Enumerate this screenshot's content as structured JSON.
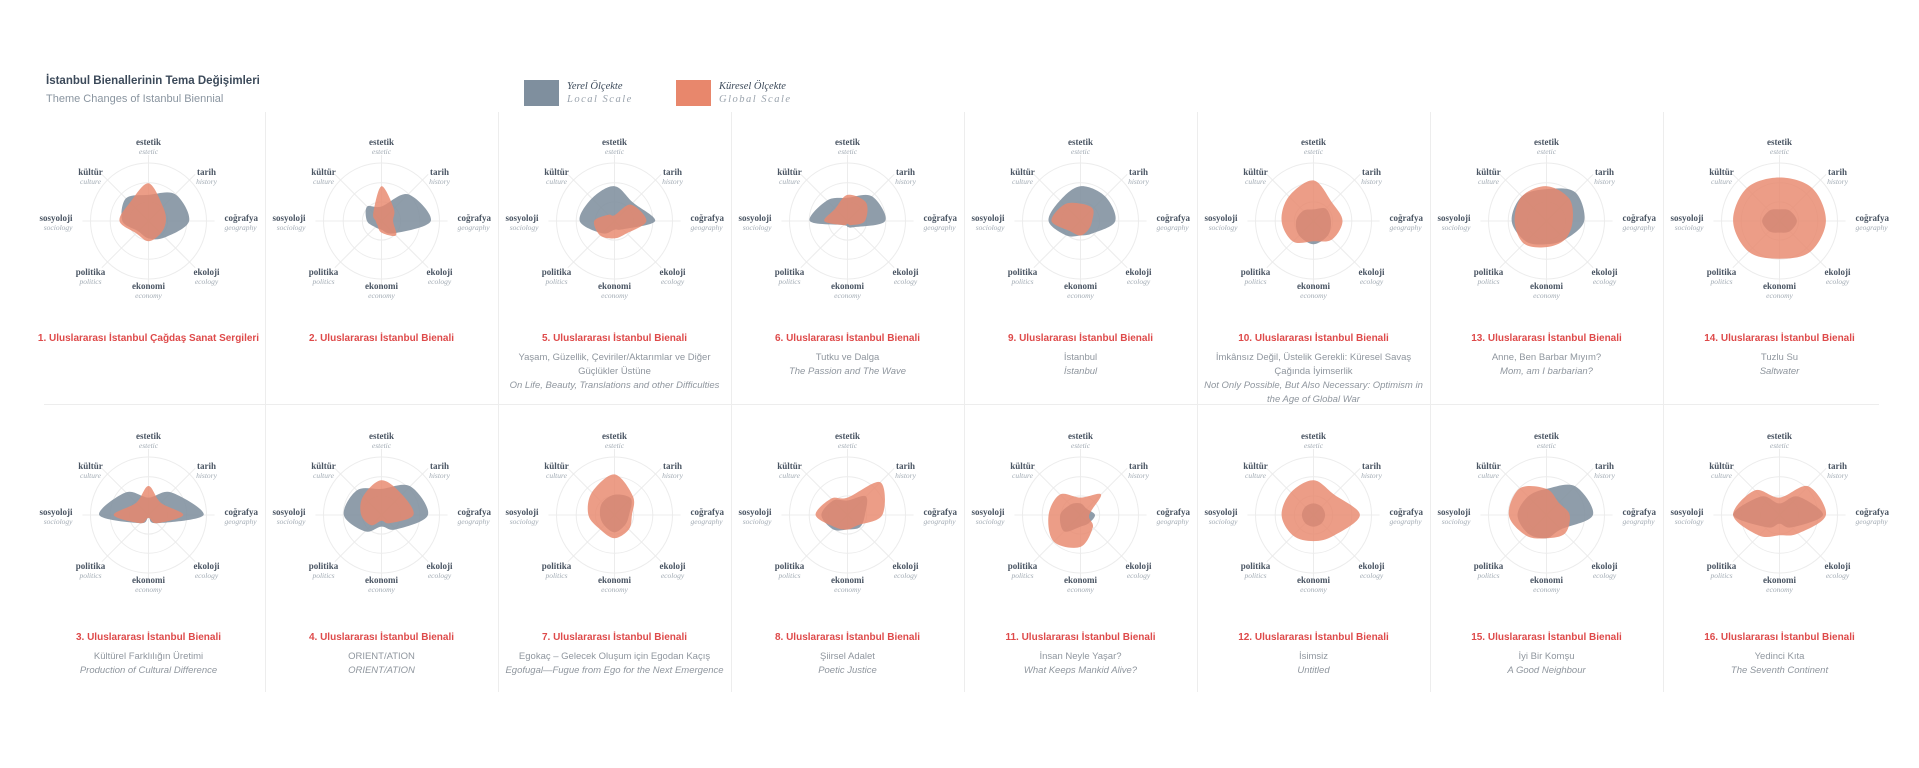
{
  "header": {
    "title_tr": "İstanbul Bienallerinin Tema Değişimleri",
    "title_en": "Theme Changes of Istanbul Biennial"
  },
  "legend": [
    {
      "label_tr": "Yerel Ölçekte",
      "label_en": "Local Scale",
      "color": "#7f8f9e"
    },
    {
      "label_tr": "Küresel Ölçekte",
      "label_en": "Global Scale",
      "color": "#e8876c"
    }
  ],
  "axes": [
    {
      "tr": "estetik",
      "en": "estetic"
    },
    {
      "tr": "tarih",
      "en": "history"
    },
    {
      "tr": "coğrafya",
      "en": "geography"
    },
    {
      "tr": "ekoloji",
      "en": "ecology"
    },
    {
      "tr": "ekonomi",
      "en": "economy"
    },
    {
      "tr": "politika",
      "en": "politics"
    },
    {
      "tr": "sosyoloji",
      "en": "sociology"
    },
    {
      "tr": "kültür",
      "en": "culture"
    }
  ],
  "chart_data": {
    "type": "radar",
    "axes": [
      "estetik",
      "tarih",
      "coğrafya",
      "ekoloji",
      "ekonomi",
      "politika",
      "sosyoloji",
      "kültür"
    ],
    "series_colors": {
      "local": "#7f8f9e",
      "global": "#e8876c"
    },
    "biennials": [
      {
        "title": "1. Uluslararası İstanbul Çağdaş Sanat Sergileri",
        "subtitle": "",
        "subtitle_en": "",
        "local": [
          0.45,
          0.65,
          0.7,
          0.4,
          0.3,
          0.25,
          0.45,
          0.55
        ],
        "global": [
          0.65,
          0.35,
          0.3,
          0.3,
          0.35,
          0.3,
          0.5,
          0.45
        ]
      },
      {
        "title": "2. Uluslararası İstanbul Bienali",
        "subtitle": "",
        "subtitle_en": "",
        "local": [
          0.25,
          0.65,
          0.85,
          0.3,
          0.15,
          0.15,
          0.25,
          0.35
        ],
        "global": [
          0.6,
          0.3,
          0.2,
          0.35,
          0.2,
          0.1,
          0.1,
          0.2
        ]
      },
      {
        "title": "5. Uluslararası İstanbul Bienali",
        "subtitle": "Yaşam, Güzellik, Çeviriler/Aktarımlar ve Diğer Güçlükler Üstüne",
        "subtitle_en": "On Life, Beauty, Translations and other Difficulties",
        "local": [
          0.6,
          0.45,
          0.7,
          0.2,
          0.15,
          0.3,
          0.6,
          0.55
        ],
        "global": [
          0.1,
          0.4,
          0.55,
          0.3,
          0.3,
          0.35,
          0.35,
          0.15
        ]
      },
      {
        "title": "6. Uluslararası İstanbul Bienali",
        "subtitle": "Tutku ve Dalga",
        "subtitle_en": "The Passion and The Wave",
        "local": [
          0.4,
          0.6,
          0.65,
          0.15,
          0.1,
          0.1,
          0.65,
          0.5
        ],
        "global": [
          0.45,
          0.45,
          0.3,
          0.1,
          0.05,
          0.1,
          0.4,
          0.3
        ]
      },
      {
        "title": "9. Uluslararası İstanbul Bienali",
        "subtitle": "İstanbul",
        "subtitle_en": "İstanbul",
        "local": [
          0.6,
          0.6,
          0.6,
          0.3,
          0.25,
          0.35,
          0.55,
          0.5
        ],
        "global": [
          0.3,
          0.3,
          0.2,
          0.2,
          0.25,
          0.25,
          0.5,
          0.4
        ]
      },
      {
        "title": "10. Uluslararası İstanbul Bienali",
        "subtitle": "İmkânsız Değil, Üstelik Gerekli: Küresel Savaş Çağında İyimserlik",
        "subtitle_en": "Not Only Possible, But Also Necessary: Optimism in the Age of Global War",
        "local": [
          0.2,
          0.3,
          0.3,
          0.35,
          0.4,
          0.35,
          0.3,
          0.25
        ],
        "global": [
          0.7,
          0.45,
          0.5,
          0.45,
          0.35,
          0.5,
          0.55,
          0.6
        ]
      },
      {
        "title": "13. Uluslararası İstanbul Bienali",
        "subtitle": "Anne, Ben Barbar Mıyım?",
        "subtitle_en": "Mom, am I barbarian?",
        "local": [
          0.55,
          0.7,
          0.65,
          0.45,
          0.4,
          0.5,
          0.6,
          0.6
        ],
        "global": [
          0.6,
          0.55,
          0.45,
          0.45,
          0.45,
          0.55,
          0.55,
          0.6
        ]
      },
      {
        "title": "14. Uluslararası İstanbul Bienali",
        "subtitle": "Tuzlu Su",
        "subtitle_en": "Saltwater",
        "local": [
          0.2,
          0.25,
          0.3,
          0.25,
          0.2,
          0.25,
          0.3,
          0.25
        ],
        "global": [
          0.75,
          0.8,
          0.8,
          0.75,
          0.65,
          0.75,
          0.8,
          0.8
        ]
      },
      {
        "title": "3. Uluslararası İstanbul Bienali",
        "subtitle": "Kültürel Farklılığın Üretimi",
        "subtitle_en": "Production of Cultural Difference",
        "local": [
          0.3,
          0.55,
          0.95,
          0.2,
          0.05,
          0.2,
          0.85,
          0.55
        ],
        "global": [
          0.5,
          0.3,
          0.6,
          0.2,
          0.05,
          0.2,
          0.6,
          0.3
        ]
      },
      {
        "title": "4. Uluslararası İstanbul Bienali",
        "subtitle": "ORIENT/ATION",
        "subtitle_en": "ORIENT/ATION",
        "local": [
          0.45,
          0.7,
          0.8,
          0.35,
          0.2,
          0.4,
          0.65,
          0.6
        ],
        "global": [
          0.6,
          0.5,
          0.55,
          0.2,
          0.1,
          0.25,
          0.35,
          0.45
        ]
      },
      {
        "title": "7. Uluslararası İstanbul Bienali",
        "subtitle": "Egokaç – Gelecek Oluşum için Egodan Kaçış",
        "subtitle_en": "Egofugal—Fugue from Ego for the Next Emergence",
        "local": [
          0.35,
          0.4,
          0.25,
          0.25,
          0.3,
          0.25,
          0.25,
          0.3
        ],
        "global": [
          0.7,
          0.45,
          0.3,
          0.35,
          0.4,
          0.35,
          0.45,
          0.55
        ]
      },
      {
        "title": "8. Uluslararası İstanbul Bienali",
        "subtitle": "Şiirsel Adalet",
        "subtitle_en": "Poetic Justice",
        "local": [
          0.25,
          0.45,
          0.3,
          0.3,
          0.25,
          0.35,
          0.45,
          0.35
        ],
        "global": [
          0.3,
          0.8,
          0.6,
          0.25,
          0.25,
          0.3,
          0.55,
          0.4
        ]
      },
      {
        "title": "11. Uluslararası İstanbul Bienali",
        "subtitle": "İnsan Neyle Yaşar?",
        "subtitle_en": "What Keeps Mankid Alive?",
        "local": [
          0.2,
          0.15,
          0.25,
          0.2,
          0.2,
          0.4,
          0.35,
          0.25
        ],
        "global": [
          0.3,
          0.5,
          0.15,
          0.3,
          0.55,
          0.65,
          0.55,
          0.5
        ]
      },
      {
        "title": "12. Uluslararası İstanbul Bienali",
        "subtitle": "İsimsiz",
        "subtitle_en": "Untitled",
        "local": [
          0.2,
          0.2,
          0.2,
          0.2,
          0.2,
          0.2,
          0.2,
          0.2
        ],
        "global": [
          0.6,
          0.5,
          0.8,
          0.5,
          0.45,
          0.5,
          0.55,
          0.55
        ]
      },
      {
        "title": "15. Uluslararası İstanbul Bienali",
        "subtitle": "İyi Bir Komşu",
        "subtitle_en": "A Good Neighbour",
        "local": [
          0.45,
          0.7,
          0.8,
          0.35,
          0.4,
          0.45,
          0.5,
          0.45
        ],
        "global": [
          0.45,
          0.3,
          0.4,
          0.45,
          0.4,
          0.5,
          0.65,
          0.65
        ]
      },
      {
        "title": "16. Uluslararası İstanbul Bienali",
        "subtitle": "Yedinci Kıta",
        "subtitle_en": "The Seventh Continent",
        "local": [
          0.2,
          0.45,
          0.75,
          0.3,
          0.15,
          0.3,
          0.8,
          0.45
        ],
        "global": [
          0.3,
          0.7,
          0.8,
          0.45,
          0.35,
          0.5,
          0.8,
          0.6
        ]
      }
    ]
  }
}
